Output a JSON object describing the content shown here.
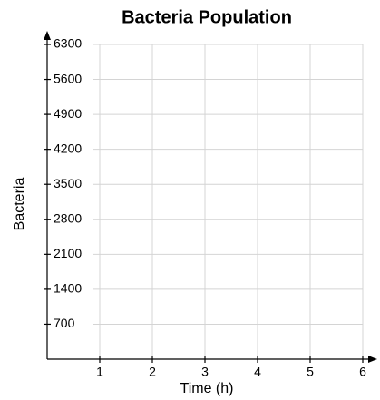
{
  "chart_data": {
    "type": "line",
    "title": "Bacteria Population",
    "xlabel": "Time (h)",
    "ylabel": "Bacteria",
    "series": [],
    "xlim": [
      0,
      6
    ],
    "xticks": [
      1,
      2,
      3,
      4,
      5,
      6
    ],
    "ylim": [
      0,
      6300
    ],
    "yticks": [
      700,
      1400,
      2100,
      2800,
      3500,
      4200,
      4900,
      5600,
      6300
    ],
    "grid": true
  }
}
